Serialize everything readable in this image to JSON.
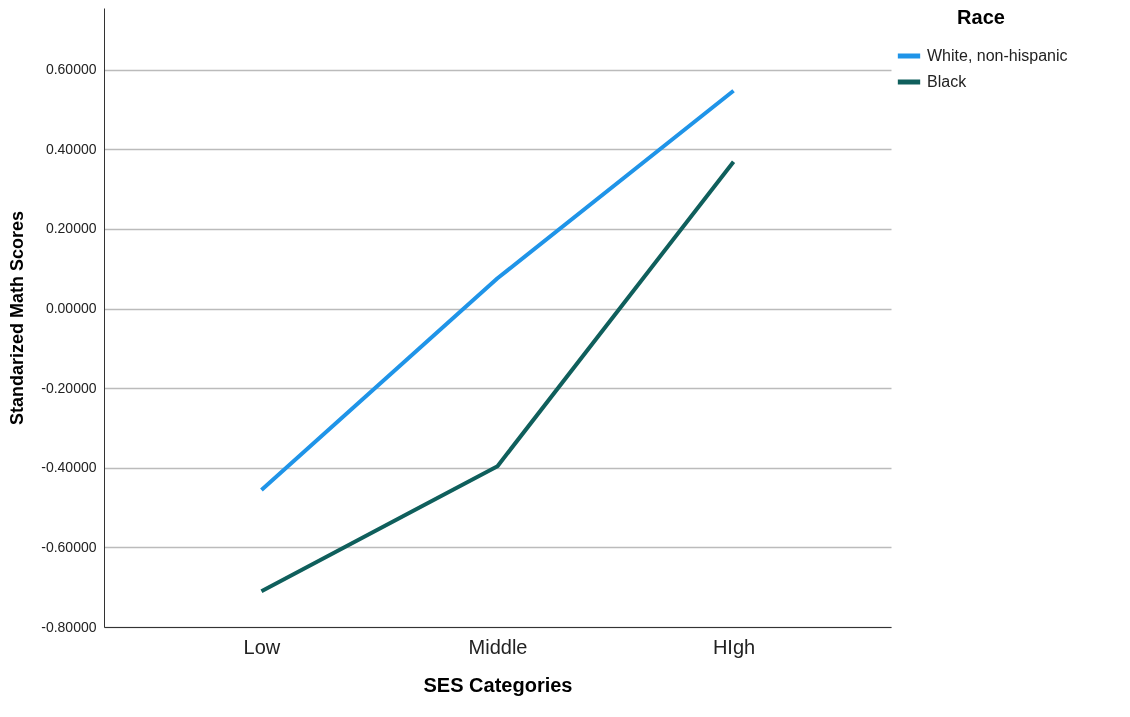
{
  "chart_data": {
    "type": "line",
    "xlabel": "SES Categories",
    "ylabel": "Standarized Math Scores",
    "legend_title": "Race",
    "legend": "top right",
    "grid": "y",
    "categories": [
      "Low",
      "Middle",
      "HIgh"
    ],
    "series": [
      {
        "name": "White, non-hispanic",
        "color": "#1f94e8",
        "values": [
          -0.456,
          0.076,
          0.547
        ]
      },
      {
        "name": "Black",
        "color": "#0f5f5c",
        "values": [
          -0.71,
          -0.396,
          0.369
        ]
      }
    ],
    "ylim": [
      -0.8,
      0.755
    ],
    "yticks": [
      {
        "value": -0.8,
        "label": "-0.80000"
      },
      {
        "value": -0.6,
        "label": "-0.60000"
      },
      {
        "value": -0.4,
        "label": "-0.40000"
      },
      {
        "value": -0.2,
        "label": "-0.20000"
      },
      {
        "value": 0,
        "label": "0.00000"
      },
      {
        "value": 0.2,
        "label": "0.20000"
      },
      {
        "value": 0.4,
        "label": "0.40000"
      },
      {
        "value": 0.6,
        "label": "0.60000"
      }
    ]
  }
}
